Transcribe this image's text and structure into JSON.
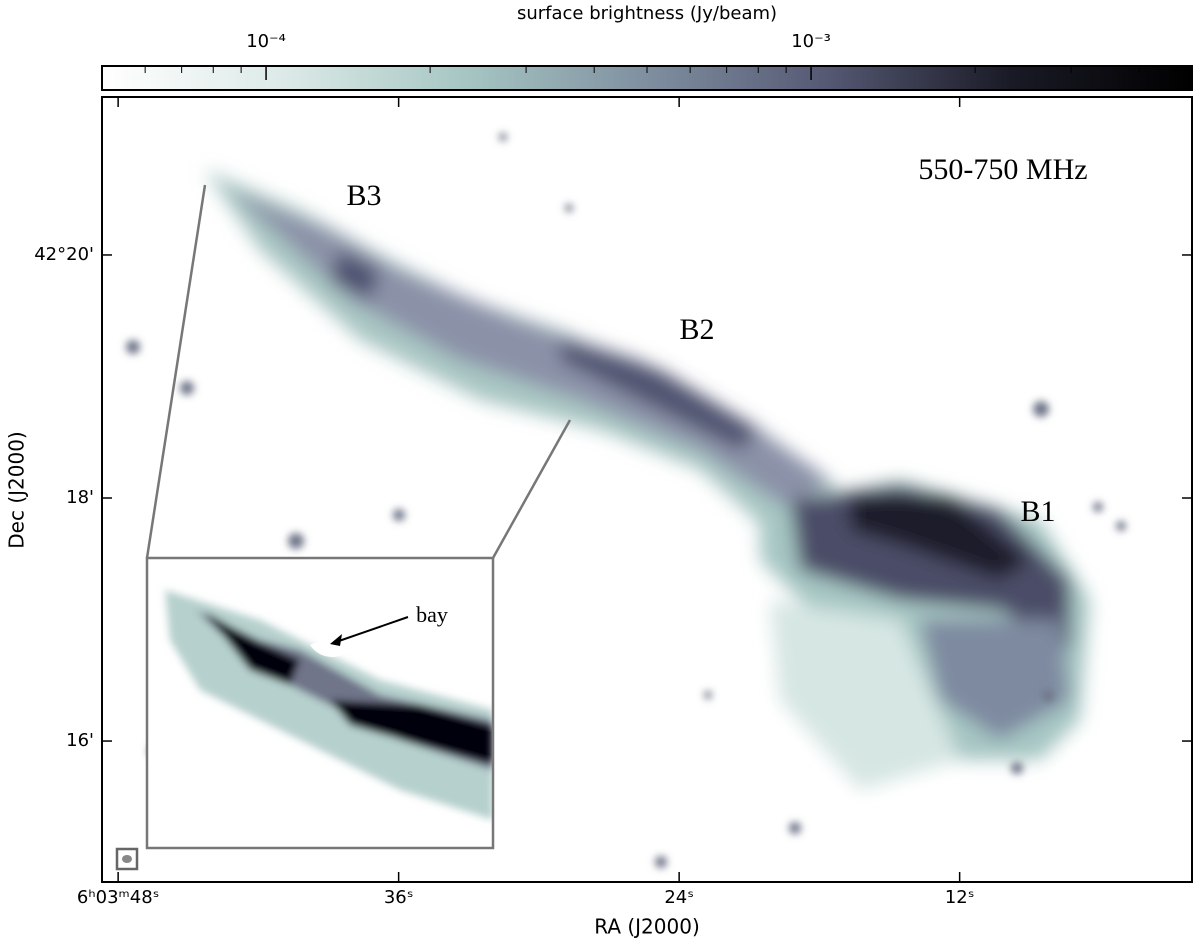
{
  "chart_data": {
    "type": "image",
    "colorbar_label": "surface brightness (Jy/beam)",
    "colorbar_log": true,
    "clim": [
      5e-05,
      0.005
    ],
    "colorbar_ticks": [
      {
        "value": 0.0001,
        "label": "10⁻⁴"
      },
      {
        "value": 0.001,
        "label": "10⁻³"
      }
    ],
    "colorbar_colors": [
      "#ffffff",
      "#dceae7",
      "#a6c6c3",
      "#7f8fa0",
      "#555873",
      "#1a1a26",
      "#000000"
    ],
    "xlabel": "RA (J2000)",
    "ylabel": "Dec (J2000)",
    "xlim": [
      48.69,
      2.06
    ],
    "xticks": [
      {
        "value": 48,
        "label": "6ʰ03ᵐ48ˢ"
      },
      {
        "value": 36,
        "label": "36ˢ"
      },
      {
        "value": 24,
        "label": "24ˢ"
      },
      {
        "value": 12,
        "label": "12ˢ"
      }
    ],
    "ylim": [
      14.84,
      21.3
    ],
    "yticks": [
      {
        "value": 20,
        "label": "42°20'"
      },
      {
        "value": 18,
        "label": "18'"
      },
      {
        "value": 16,
        "label": "16'"
      }
    ],
    "annotations": [
      "B3",
      "B2",
      "B1",
      "550-750 MHz",
      "bay"
    ]
  }
}
